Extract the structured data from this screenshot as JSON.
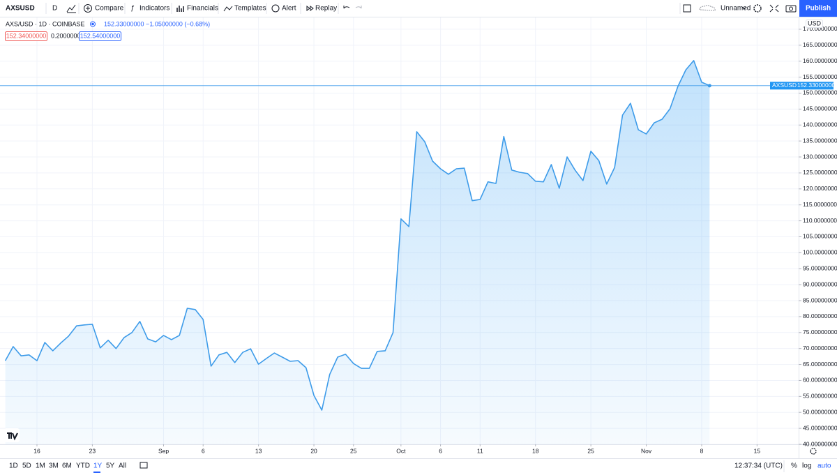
{
  "toolbar": {
    "symbol": "AXSUSD",
    "interval": "D",
    "buttons": [
      "Compare",
      "Indicators",
      "Financials",
      "Templates",
      "Alert",
      "Replay"
    ],
    "layout_name": "Unnamed",
    "publish": "Publish"
  },
  "legend": {
    "title": "AXS/USD · 1D · COINBASE",
    "quote": "152.33000000 −1.05000000 (−0.68%)",
    "bid": "152.34000000",
    "spread": "0.20000000",
    "ask": "152.54000000"
  },
  "price_axis": {
    "currency": "USD",
    "tag_symbol": "AXSUSD",
    "tag_price": "152.33000000"
  },
  "bottom_bar": {
    "ranges": [
      "1D",
      "5D",
      "1M",
      "3M",
      "6M",
      "YTD",
      "1Y",
      "5Y",
      "All"
    ],
    "time": "12:37:34 (UTC)",
    "options": [
      "%",
      "log",
      "auto"
    ]
  },
  "chart_data": {
    "type": "area",
    "color": "#3d9be9",
    "grid": true,
    "categories": [
      null,
      null,
      null,
      null,
      "16",
      null,
      null,
      null,
      null,
      null,
      null,
      "23",
      null,
      null,
      null,
      null,
      null,
      null,
      null,
      null,
      "Sep",
      null,
      null,
      null,
      null,
      "6",
      null,
      null,
      null,
      null,
      null,
      null,
      "13",
      null,
      null,
      null,
      null,
      null,
      null,
      "20",
      null,
      null,
      null,
      null,
      "25",
      null,
      null,
      null,
      null,
      null,
      "Oct",
      null,
      null,
      null,
      null,
      "6",
      null,
      null,
      null,
      null,
      "11",
      null,
      null,
      null,
      null,
      null,
      null,
      "18",
      null,
      null,
      null,
      null,
      null,
      null,
      "25",
      null,
      null,
      null,
      null,
      null,
      null,
      "Nov",
      null,
      null,
      null,
      null,
      null,
      null,
      "8",
      null,
      null,
      null,
      null,
      null,
      null,
      "15",
      null,
      null,
      null,
      null,
      null,
      null
    ],
    "values": [
      66.2,
      70.6,
      67.7,
      68.0,
      66.2,
      71.9,
      69.3,
      71.7,
      73.9,
      77.1,
      77.4,
      77.6,
      70.2,
      72.6,
      70.0,
      73.4,
      75.0,
      78.5,
      73.0,
      72.1,
      74.1,
      72.8,
      74.1,
      82.6,
      82.2,
      79.1,
      64.5,
      68.0,
      68.8,
      65.6,
      68.8,
      69.9,
      65.1,
      66.9,
      68.6,
      67.3,
      66.0,
      66.2,
      64.0,
      55.3,
      50.7,
      61.9,
      67.3,
      68.2,
      65.3,
      63.8,
      63.8,
      69.1,
      69.3,
      75.0,
      110.6,
      108.2,
      137.9,
      134.8,
      128.7,
      126.3,
      124.6,
      126.3,
      126.5,
      116.3,
      116.7,
      122.2,
      121.7,
      136.4,
      125.9,
      125.2,
      124.8,
      122.4,
      122.2,
      127.6,
      120.2,
      130.0,
      125.9,
      122.6,
      131.8,
      128.9,
      121.5,
      126.7,
      143.1,
      146.8,
      138.5,
      137.2,
      140.7,
      141.8,
      145.1,
      152.1,
      157.3,
      160.2,
      153.4,
      152.33,
      null,
      null,
      null,
      null,
      null,
      null,
      null,
      null,
      null,
      null,
      null,
      null
    ],
    "ylim": [
      40,
      173.7
    ],
    "yticks": [
      {
        "value": 40,
        "label": "40.00000000"
      },
      {
        "value": 45,
        "label": "45.00000000"
      },
      {
        "value": 50,
        "label": "50.00000000"
      },
      {
        "value": 55,
        "label": "55.00000000"
      },
      {
        "value": 60,
        "label": "60.00000000"
      },
      {
        "value": 65,
        "label": "65.00000000"
      },
      {
        "value": 70,
        "label": "70.00000000"
      },
      {
        "value": 75,
        "label": "75.00000000"
      },
      {
        "value": 80,
        "label": "80.00000000"
      },
      {
        "value": 85,
        "label": "85.00000000"
      },
      {
        "value": 90,
        "label": "90.00000000"
      },
      {
        "value": 95,
        "label": "95.00000000"
      },
      {
        "value": 100,
        "label": "100.00000000"
      },
      {
        "value": 105,
        "label": "105.00000000"
      },
      {
        "value": 110,
        "label": "110.00000000"
      },
      {
        "value": 115,
        "label": "115.00000000"
      },
      {
        "value": 120,
        "label": "120.00000000"
      },
      {
        "value": 125,
        "label": "125.00000000"
      },
      {
        "value": 130,
        "label": "130.00000000"
      },
      {
        "value": 135,
        "label": "135.00000000"
      },
      {
        "value": 140,
        "label": "140.00000000"
      },
      {
        "value": 145,
        "label": "145.00000000"
      },
      {
        "value": 150,
        "label": "150.00000000"
      },
      {
        "value": 155,
        "label": "155.00000000"
      },
      {
        "value": 160,
        "label": "160.00000000"
      },
      {
        "value": 165,
        "label": "165.00000000"
      },
      {
        "value": 170,
        "label": "170.00000000"
      }
    ]
  }
}
